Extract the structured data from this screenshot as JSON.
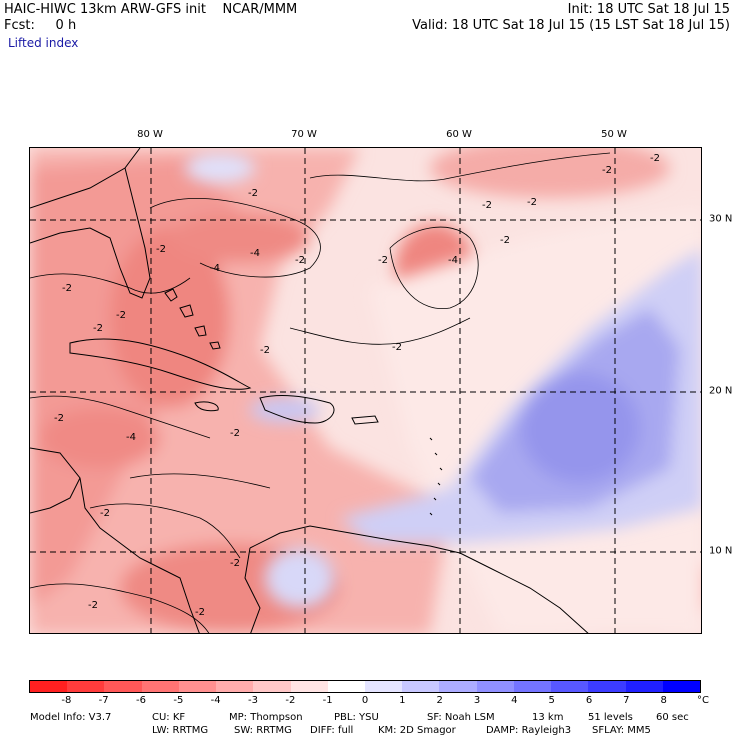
{
  "header": {
    "title": "HAIC-HIWC 13km ARW-GFS init    NCAR/MMM",
    "init": "Init: 18 UTC Sat 18 Jul 15",
    "fcst": "Fcst:     0 h",
    "valid": "Valid: 18 UTC Sat 18 Jul 15 (15 LST Sat 18 Jul 15)",
    "field": "Lifted index"
  },
  "map": {
    "lon_labels": [
      "80 W",
      "70 W",
      "60 W",
      "50 W"
    ],
    "lat_labels": [
      "30 N",
      "20 N",
      "10 N"
    ],
    "contour_labels": [
      "-2",
      "-2",
      "-2",
      "-2",
      "-4",
      "-2",
      "-2",
      "-4",
      "-2",
      "-2",
      "-2",
      "-2",
      "-2",
      "-4",
      "-2",
      "-2",
      "-2",
      "-4",
      "-2",
      "-2",
      "-2",
      "-2",
      "-2",
      "-2"
    ],
    "colors": {
      "neg_strong": "#f06a6a",
      "neg_mid": "#f8a0a0",
      "neg_light": "#fcd6d6",
      "pos_light": "#d6d6fa",
      "pos_mid": "#9a9af0",
      "land_line": "#000000",
      "grid_line": "#000000"
    }
  },
  "colorbar": {
    "colors": [
      "#ff2020",
      "#ff3c3c",
      "#ff5858",
      "#ff7474",
      "#ff9090",
      "#ffacac",
      "#ffc8c8",
      "#ffe4e4",
      "#ffffff",
      "#e4e4ff",
      "#c8c8ff",
      "#acacff",
      "#9090ff",
      "#7474ff",
      "#5858ff",
      "#3c3cff",
      "#2020ff",
      "#0000ff"
    ],
    "ticks": [
      "-8",
      "-7",
      "-6",
      "-5",
      "-4",
      "-3",
      "-2",
      "-1",
      "0",
      "1",
      "2",
      "3",
      "4",
      "5",
      "6",
      "7",
      "8"
    ],
    "unit": "°C"
  },
  "footer": {
    "line1": [
      "Model Info: V3.7",
      "CU: KF",
      "MP: Thompson",
      "PBL: YSU",
      "SF: Noah LSM",
      "13 km",
      "51 levels",
      "60 sec"
    ],
    "line2": [
      "LW: RRTMG",
      "SW: RRTMG",
      "DIFF: full",
      "KM: 2D Smagor",
      "DAMP: Rayleigh3",
      "SFLAY: MM5"
    ]
  }
}
